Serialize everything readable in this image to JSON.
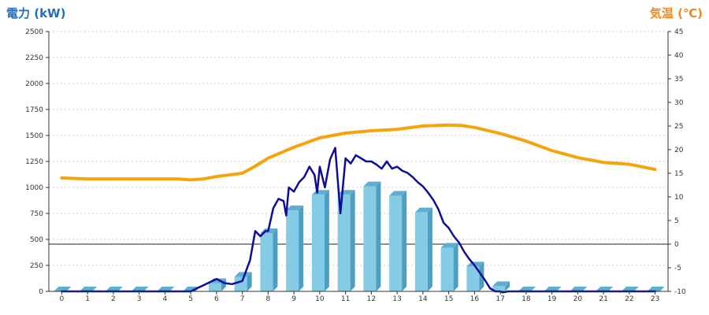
{
  "chart_data": {
    "type": "bar",
    "title": "",
    "xlabel": "",
    "categories": [
      "0",
      "1",
      "2",
      "3",
      "4",
      "5",
      "6",
      "7",
      "8",
      "9",
      "10",
      "11",
      "12",
      "13",
      "14",
      "15",
      "16",
      "17",
      "18",
      "19",
      "20",
      "21",
      "22",
      "23"
    ],
    "ylabel_left": "電力 (kW)",
    "ylabel_right": "気温 (℃)",
    "y_left_range": [
      0,
      2500
    ],
    "y_left_ticks": [
      "0",
      "250",
      "500",
      "750",
      "1000",
      "1250",
      "1500",
      "1750",
      "2000",
      "2250",
      "2500"
    ],
    "y_right_range": [
      -10,
      45
    ],
    "y_right_ticks": [
      "-10",
      "-5",
      "0",
      "5",
      "10",
      "15",
      "20",
      "25",
      "30",
      "35",
      "40",
      "45"
    ],
    "grid": true,
    "series": [
      {
        "kind": "bar",
        "axis": "left",
        "values": [
          0,
          0,
          0,
          0,
          0,
          0,
          80,
          140,
          560,
          780,
          930,
          930,
          1010,
          920,
          760,
          420,
          240,
          50,
          0,
          0,
          0,
          0,
          0,
          0
        ]
      },
      {
        "kind": "line",
        "axis": "left",
        "x": [
          0,
          3,
          5,
          5.5,
          6,
          6.3,
          6.6,
          7,
          7.3,
          7.5,
          7.7,
          7.9,
          8,
          8.2,
          8.4,
          8.6,
          8.7,
          8.8,
          9,
          9.2,
          9.4,
          9.6,
          9.8,
          9.9,
          10,
          10.2,
          10.4,
          10.6,
          10.8,
          11,
          11.2,
          11.4,
          11.6,
          11.8,
          12,
          12.2,
          12.4,
          12.6,
          12.8,
          13,
          13.2,
          13.4,
          13.6,
          13.8,
          14,
          14.2,
          14.4,
          14.6,
          14.8,
          15,
          15.2,
          15.4,
          15.6,
          15.8,
          16,
          16.2,
          16.4,
          16.6,
          16.8,
          17,
          17.1,
          17.3,
          18,
          23
        ],
        "values": [
          0,
          0,
          0,
          60,
          120,
          80,
          70,
          100,
          300,
          580,
          530,
          580,
          580,
          800,
          890,
          870,
          730,
          1000,
          960,
          1050,
          1100,
          1200,
          1120,
          950,
          1200,
          1000,
          1270,
          1380,
          750,
          1280,
          1230,
          1310,
          1280,
          1250,
          1250,
          1220,
          1180,
          1250,
          1180,
          1200,
          1160,
          1140,
          1100,
          1050,
          1010,
          950,
          880,
          790,
          660,
          610,
          530,
          470,
          380,
          310,
          250,
          180,
          110,
          30,
          0,
          0,
          -10,
          0,
          0,
          0
        ]
      },
      {
        "kind": "line",
        "axis": "right",
        "x": [
          0,
          0.5,
          1,
          2,
          3,
          4,
          4.5,
          5,
          5.5,
          6,
          7,
          7.5,
          8,
          9,
          10,
          11,
          12,
          13,
          14,
          15,
          15.5,
          16,
          17,
          18,
          19,
          20,
          21,
          22,
          23
        ],
        "values": [
          14,
          13.9,
          13.8,
          13.8,
          13.8,
          13.8,
          13.8,
          13.6,
          13.8,
          14.3,
          15,
          16.5,
          18.2,
          20.5,
          22.5,
          23.5,
          24,
          24.3,
          25,
          25.2,
          25.1,
          24.7,
          23.4,
          21.8,
          19.8,
          18.3,
          17.3,
          16.9,
          15.8
        ]
      }
    ],
    "colors": {
      "bar_front": "#86cbe6",
      "bar_side": "#4d9fc1",
      "bar_top": "#5eaed0",
      "power_line": "#0d0d99",
      "temp_line": "#f5a40e",
      "left_label": "#1d6fbf",
      "right_label": "#f2871d"
    }
  }
}
